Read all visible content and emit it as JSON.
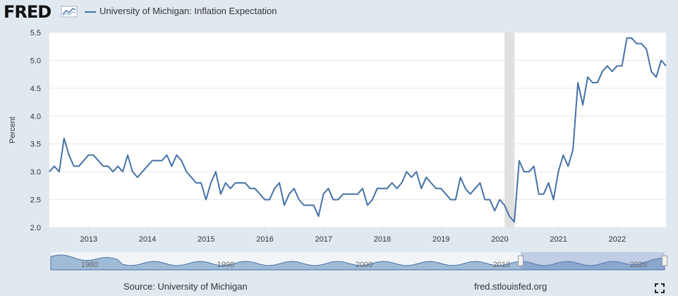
{
  "header": {
    "logo_text": "FRED",
    "legend_label": "University of Michigan: Inflation Expectation"
  },
  "colors": {
    "series": "#4572a7",
    "background": "#e1e9f0",
    "recession": "#e0e0e0"
  },
  "icons": {
    "logo": "fred-logo-icon",
    "fullscreen": "fullscreen-icon"
  },
  "navigator": {
    "labels": [
      "1980",
      "1990",
      "2000",
      "2010",
      "2020"
    ]
  },
  "footer": {
    "source": "Source: University of Michigan",
    "url": "fred.stlouisfed.org"
  },
  "chart_data": {
    "type": "line",
    "title": "University of Michigan: Inflation Expectation",
    "ylabel": "Percent",
    "xlabel": "",
    "ylim": [
      2.0,
      5.5
    ],
    "yticks": [
      "2.0",
      "2.5",
      "3.0",
      "3.5",
      "4.0",
      "4.5",
      "5.0",
      "5.5"
    ],
    "xticks": [
      "2013",
      "2014",
      "2015",
      "2016",
      "2017",
      "2018",
      "2019",
      "2020",
      "2021",
      "2022"
    ],
    "xrange": [
      2012.33,
      2022.83
    ],
    "recession": {
      "start": 2020.08,
      "end": 2020.25
    },
    "series": [
      {
        "name": "University of Michigan: Inflation Expectation",
        "start": 2012.33,
        "step": 0.0833333,
        "values": [
          3.0,
          3.1,
          3.0,
          3.6,
          3.3,
          3.1,
          3.1,
          3.2,
          3.3,
          3.3,
          3.2,
          3.1,
          3.1,
          3.0,
          3.1,
          3.0,
          3.3,
          3.0,
          2.9,
          3.0,
          3.1,
          3.2,
          3.2,
          3.2,
          3.3,
          3.1,
          3.3,
          3.2,
          3.0,
          2.9,
          2.8,
          2.8,
          2.5,
          2.8,
          3.0,
          2.6,
          2.8,
          2.7,
          2.8,
          2.8,
          2.8,
          2.7,
          2.7,
          2.6,
          2.5,
          2.5,
          2.7,
          2.8,
          2.4,
          2.6,
          2.7,
          2.5,
          2.4,
          2.4,
          2.4,
          2.2,
          2.6,
          2.7,
          2.5,
          2.5,
          2.6,
          2.6,
          2.6,
          2.6,
          2.7,
          2.4,
          2.5,
          2.7,
          2.7,
          2.7,
          2.8,
          2.7,
          2.8,
          3.0,
          2.9,
          3.0,
          2.7,
          2.9,
          2.8,
          2.7,
          2.7,
          2.6,
          2.5,
          2.5,
          2.9,
          2.7,
          2.6,
          2.7,
          2.8,
          2.5,
          2.5,
          2.3,
          2.5,
          2.4,
          2.2,
          2.1,
          3.2,
          3.0,
          3.0,
          3.1,
          2.6,
          2.6,
          2.8,
          2.5,
          3.0,
          3.3,
          3.1,
          3.4,
          4.6,
          4.2,
          4.7,
          4.6,
          4.6,
          4.8,
          4.9,
          4.8,
          4.9,
          4.9,
          5.4,
          5.4,
          5.3,
          5.3,
          5.2,
          4.8,
          4.7,
          5.0,
          4.9
        ]
      }
    ]
  }
}
